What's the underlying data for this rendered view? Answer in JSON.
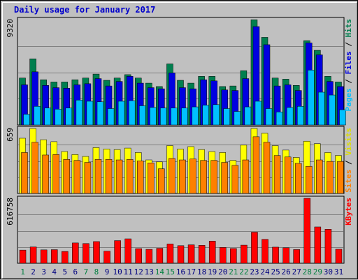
{
  "chart_data": {
    "type": "bar",
    "title": "Daily usage for January 2017",
    "categories": [
      "1",
      "2",
      "3",
      "4",
      "5",
      "6",
      "7",
      "8",
      "9",
      "10",
      "11",
      "12",
      "13",
      "14",
      "15",
      "16",
      "17",
      "18",
      "19",
      "20",
      "21",
      "22",
      "23",
      "24",
      "25",
      "26",
      "27",
      "28",
      "29",
      "30",
      "31"
    ],
    "weekend_days": [
      "1",
      "7",
      "8",
      "14",
      "15",
      "21",
      "22",
      "28",
      "29"
    ],
    "panels": [
      {
        "name": "hits-files-pages",
        "ymax_label": "9320",
        "ylim": [
          0,
          9320
        ],
        "legend": [
          "Pages",
          "Files",
          "Hits"
        ],
        "series": [
          {
            "name": "Hits",
            "color": "#007f4f",
            "values": [
              4150,
              5850,
              4000,
              3800,
              3800,
              4000,
              4150,
              4500,
              3950,
              4150,
              4450,
              4150,
              3700,
              3400,
              5400,
              3950,
              3700,
              4300,
              4300,
              3400,
              3450,
              4800,
              9300,
              7750,
              4150,
              4050,
              3500,
              7450,
              6600,
              4300,
              3800
            ]
          },
          {
            "name": "Files",
            "color": "#0000e0",
            "values": [
              3550,
              4700,
              3500,
              3300,
              3250,
              3550,
              3650,
              4100,
              3450,
              3850,
              4300,
              3700,
              3300,
              3200,
              4600,
              3300,
              3200,
              4000,
              3900,
              3100,
              3050,
              4100,
              8700,
              7100,
              3450,
              3550,
              3050,
              7250,
              6200,
              3850,
              3400
            ]
          },
          {
            "name": "Pages",
            "color": "#00c0ff",
            "values": [
              950,
              1650,
              1500,
              1400,
              1500,
              2200,
              2100,
              2050,
              1450,
              2100,
              2150,
              1700,
              1550,
              1500,
              1500,
              1500,
              1600,
              1750,
              1800,
              1450,
              1200,
              1600,
              2100,
              1450,
              1150,
              1550,
              1650,
              4850,
              2900,
              2650,
              1350
            ]
          }
        ]
      },
      {
        "name": "visits-sites",
        "ymax_label": "659",
        "ylim": [
          0,
          659
        ],
        "legend": [
          "Sites",
          "Visits"
        ],
        "series": [
          {
            "name": "Visits",
            "color": "#ffff00",
            "values": [
              560,
              659,
              545,
              525,
              425,
              395,
              375,
              465,
              450,
              445,
              460,
              415,
              340,
              320,
              485,
              450,
              475,
              445,
              425,
              415,
              335,
              490,
              659,
              610,
              485,
              440,
              365,
              530,
              505,
              415,
              385
            ]
          },
          {
            "name": "Sites",
            "color": "#ff8000",
            "values": [
              415,
              520,
              390,
              395,
              345,
              335,
              315,
              345,
              345,
              340,
              345,
              330,
              310,
              250,
              355,
              340,
              350,
              335,
              335,
              315,
              285,
              340,
              575,
              520,
              385,
              370,
              305,
              275,
              340,
              325,
              325
            ]
          }
        ]
      },
      {
        "name": "kbytes",
        "ymax_label": "616758",
        "ylim": [
          0,
          616758
        ],
        "legend": [
          "KBytes"
        ],
        "series": [
          {
            "name": "KBytes",
            "color": "#ff0000",
            "values": [
              125000,
              155000,
              127000,
              129000,
              112000,
              193000,
              187000,
              206000,
              115000,
              215000,
              232000,
              139000,
              132000,
              142000,
              183000,
              167000,
              175000,
              170000,
              210000,
              150000,
              140000,
              172000,
              295000,
              227000,
              153000,
              147000,
              130000,
              616758,
              345000,
              323000,
              133000
            ]
          }
        ]
      }
    ],
    "right_labels": [
      [
        {
          "text": "Pages",
          "color": "#00c0ff"
        },
        {
          "text": " / ",
          "color": "#000000"
        },
        {
          "text": "Files",
          "color": "#0000e0"
        },
        {
          "text": " / ",
          "color": "#000000"
        },
        {
          "text": "Hits",
          "color": "#007f4f"
        }
      ],
      [
        {
          "text": "Sites",
          "color": "#ff8000"
        },
        {
          "text": " / ",
          "color": "#000000"
        },
        {
          "text": "Visits",
          "color": "#dddd00"
        }
      ],
      [
        {
          "text": "KBytes",
          "color": "#ff0000"
        }
      ]
    ],
    "colors": {
      "background": "#c0c0c0",
      "weekday_label": "#000080",
      "weekend_label": "#008040",
      "plot_border": "#000000",
      "gridline": "#808080"
    }
  }
}
